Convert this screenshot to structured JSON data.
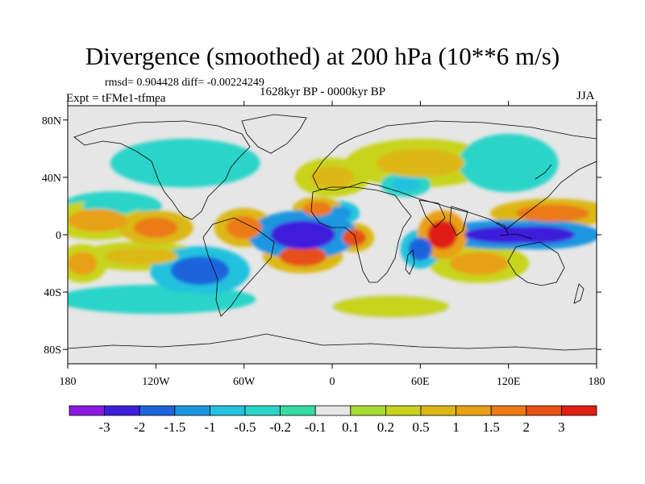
{
  "title": "Divergence (smoothed) at 200 hPa (10**6 m/s)",
  "stats_line": "rmsd= 0.904428 diff= -0.00224249",
  "experiment": "Expt = tFMe1-tfmea",
  "period": "1628kyr BP - 0000kyr BP",
  "season": "JJA",
  "axes": {
    "x_ticks": [
      {
        "lon": -180,
        "label": "180"
      },
      {
        "lon": -120,
        "label": "120W"
      },
      {
        "lon": -60,
        "label": "60W"
      },
      {
        "lon": 0,
        "label": "0"
      },
      {
        "lon": 60,
        "label": "60E"
      },
      {
        "lon": 120,
        "label": "120E"
      },
      {
        "lon": 180,
        "label": "180"
      }
    ],
    "y_ticks": [
      {
        "lat": 80,
        "label": "80N"
      },
      {
        "lat": 40,
        "label": "40N"
      },
      {
        "lat": 0,
        "label": "0"
      },
      {
        "lat": -40,
        "label": "40S"
      },
      {
        "lat": -80,
        "label": "80S"
      }
    ],
    "lon_range": [
      -180,
      180
    ],
    "lat_range": [
      -90,
      90
    ]
  },
  "colorbar": {
    "colors": [
      "#8c1ae6",
      "#3c1edc",
      "#1e64dc",
      "#1a96e0",
      "#22c2de",
      "#2ad4c8",
      "#34dca0",
      "#e6e6e6",
      "#a6dc32",
      "#c8d41c",
      "#dcb814",
      "#e8a014",
      "#ec7a14",
      "#e65014",
      "#e01e14"
    ],
    "labels": [
      "-3",
      "-2",
      "-1.5",
      "-1",
      "-0.5",
      "-0.2",
      "-0.1",
      "0.1",
      "0.2",
      "0.5",
      "1",
      "1.5",
      "2",
      "3"
    ]
  },
  "chart_data": {
    "type": "heatmap",
    "title": "Divergence (smoothed) at 200 hPa (10**6 m/s)",
    "levels": [
      -3,
      -2,
      -1.5,
      -1,
      -0.5,
      -0.2,
      -0.1,
      0.1,
      0.2,
      0.5,
      1,
      1.5,
      2,
      3
    ],
    "features": [
      {
        "lon": -20,
        "lat": 0,
        "value": -3,
        "rx": 22,
        "ry": 10
      },
      {
        "lon": 120,
        "lat": 0,
        "value": -3,
        "rx": 30,
        "ry": 6
      },
      {
        "lon": 140,
        "lat": 0,
        "value": -2.5,
        "rx": 25,
        "ry": 6
      },
      {
        "lon": 60,
        "lat": -10,
        "value": -2,
        "rx": 8,
        "ry": 8
      },
      {
        "lon": -90,
        "lat": -25,
        "value": -2,
        "rx": 20,
        "ry": 10
      },
      {
        "lon": 5,
        "lat": 15,
        "value": -1.5,
        "rx": 8,
        "ry": 5
      },
      {
        "lon": 50,
        "lat": 35,
        "value": -1,
        "rx": 10,
        "ry": 5
      },
      {
        "lon": -150,
        "lat": 20,
        "value": -0.5,
        "rx": 20,
        "ry": 6
      },
      {
        "lon": 75,
        "lat": 0,
        "value": 3,
        "rx": 10,
        "ry": 10
      },
      {
        "lon": -10,
        "lat": 18,
        "value": 1.5,
        "rx": 10,
        "ry": 5
      },
      {
        "lon": -20,
        "lat": -15,
        "value": 2,
        "rx": 16,
        "ry": 7
      },
      {
        "lon": 15,
        "lat": -2,
        "value": 2,
        "rx": 8,
        "ry": 6
      },
      {
        "lon": -60,
        "lat": 5,
        "value": 1.5,
        "rx": 12,
        "ry": 8
      },
      {
        "lon": -120,
        "lat": 5,
        "value": 1.5,
        "rx": 15,
        "ry": 7
      },
      {
        "lon": -160,
        "lat": 10,
        "value": 1,
        "rx": 20,
        "ry": 8
      },
      {
        "lon": -170,
        "lat": -20,
        "value": 1,
        "rx": 10,
        "ry": 8
      },
      {
        "lon": 150,
        "lat": 15,
        "value": 1.5,
        "rx": 25,
        "ry": 6
      },
      {
        "lon": 100,
        "lat": -20,
        "value": 1,
        "rx": 20,
        "ry": 8
      },
      {
        "lon": -130,
        "lat": -15,
        "value": 0.5,
        "rx": 25,
        "ry": 6
      },
      {
        "lon": 60,
        "lat": 50,
        "value": 0.5,
        "rx": 30,
        "ry": 10
      },
      {
        "lon": 120,
        "lat": 50,
        "value": -0.5,
        "rx": 20,
        "ry": 12
      },
      {
        "lon": -100,
        "lat": 50,
        "value": -0.5,
        "rx": 30,
        "ry": 10
      },
      {
        "lon": -120,
        "lat": -45,
        "value": -0.5,
        "rx": 40,
        "ry": 6
      },
      {
        "lon": 40,
        "lat": -50,
        "value": 0.2,
        "rx": 40,
        "ry": 8
      },
      {
        "lon": 0,
        "lat": 40,
        "value": 0.5,
        "rx": 15,
        "ry": 8
      }
    ]
  }
}
